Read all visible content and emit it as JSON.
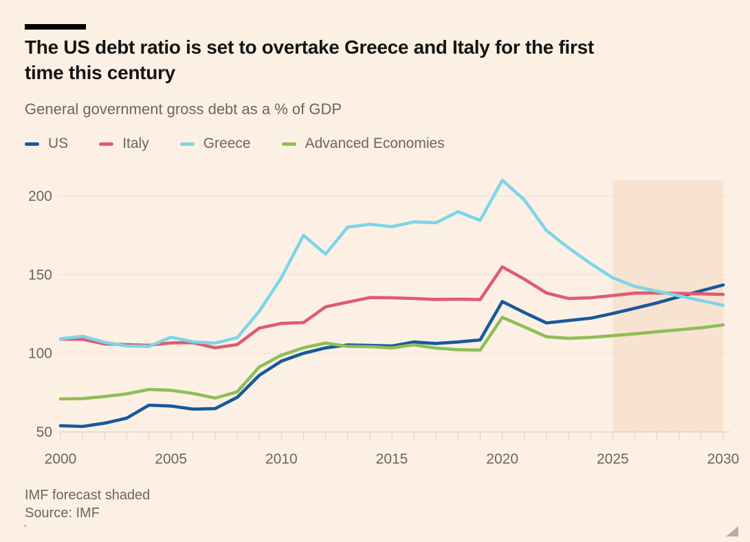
{
  "header": {
    "title_line1": "The US debt ratio is set to overtake Greece and Italy for the first",
    "title_line2": "time this century",
    "subtitle": "General government gross debt as a % of GDP"
  },
  "footer": {
    "note": "IMF forecast shaded",
    "source": "Source: IMF"
  },
  "colors": {
    "background": "#FCF0E4",
    "accent_bar": "#000000",
    "title_text": "#161412",
    "muted_text": "#6B655F",
    "gridline": "#EFE2D6",
    "axis_line": "#E3D5C8",
    "tick": "#E2D4C7",
    "forecast_shade": "#F8E3D1",
    "handle": "#A59D93"
  },
  "chart_data": {
    "type": "line",
    "title": "The US debt ratio is set to overtake Greece and Italy for the first time this century",
    "subtitle": "General government gross debt as a % of GDP",
    "xlabel": "",
    "ylabel": "General government gross debt as a % of GDP",
    "grid": true,
    "legend_position": "top",
    "ylim": [
      50,
      210
    ],
    "yticks": [
      50,
      100,
      150,
      200
    ],
    "xticks": [
      2000,
      2005,
      2010,
      2015,
      2020,
      2025,
      2030
    ],
    "forecast": {
      "from": 2025,
      "to": 2030,
      "note": "IMF forecast shaded"
    },
    "x": [
      2000,
      2001,
      2002,
      2003,
      2004,
      2005,
      2006,
      2007,
      2008,
      2009,
      2010,
      2011,
      2012,
      2013,
      2014,
      2015,
      2016,
      2017,
      2018,
      2019,
      2020,
      2021,
      2022,
      2023,
      2024,
      2025,
      2026,
      2027,
      2028,
      2029,
      2030
    ],
    "series": [
      {
        "name": "US",
        "color": "#16599D",
        "values": [
          54.0,
          53.5,
          55.6,
          58.8,
          67.0,
          66.5,
          64.5,
          64.8,
          72.0,
          86.0,
          95.0,
          100.0,
          103.4,
          105.3,
          105.0,
          104.6,
          107.2,
          106.2,
          107.2,
          108.5,
          132.9,
          125.9,
          119.3,
          120.8,
          122.3,
          125.3,
          128.6,
          132.0,
          135.9,
          139.7,
          143.4
        ]
      },
      {
        "name": "Italy",
        "color": "#DE5B73",
        "values": [
          109.0,
          108.9,
          105.9,
          105.5,
          105.1,
          106.6,
          106.7,
          103.5,
          105.5,
          116.0,
          119.0,
          119.5,
          129.5,
          132.5,
          135.4,
          135.3,
          134.8,
          134.2,
          134.4,
          134.1,
          154.9,
          147.1,
          138.3,
          134.8,
          135.3,
          136.7,
          138.2,
          138.4,
          138.1,
          137.8,
          137.4
        ]
      },
      {
        "name": "Greece",
        "color": "#7DD5E8",
        "values": [
          109.2,
          110.8,
          107.0,
          104.6,
          104.4,
          110.2,
          107.3,
          106.5,
          110.0,
          126.7,
          148.0,
          175.0,
          163.0,
          180.2,
          182.0,
          180.5,
          183.5,
          183.0,
          190.0,
          184.5,
          210.0,
          197.5,
          178.0,
          167.0,
          157.0,
          148.0,
          142.5,
          139.5,
          136.5,
          133.5,
          130.5
        ]
      },
      {
        "name": "Advanced Economies",
        "color": "#8EBE55",
        "values": [
          71.0,
          71.2,
          72.5,
          74.2,
          77.0,
          76.5,
          74.5,
          71.5,
          75.5,
          91.3,
          98.8,
          103.5,
          106.5,
          104.4,
          104.2,
          103.4,
          105.4,
          103.3,
          102.3,
          102.0,
          122.8,
          116.8,
          110.5,
          109.5,
          110.1,
          111.2,
          112.4,
          113.7,
          114.9,
          116.2,
          118.0
        ]
      }
    ]
  }
}
